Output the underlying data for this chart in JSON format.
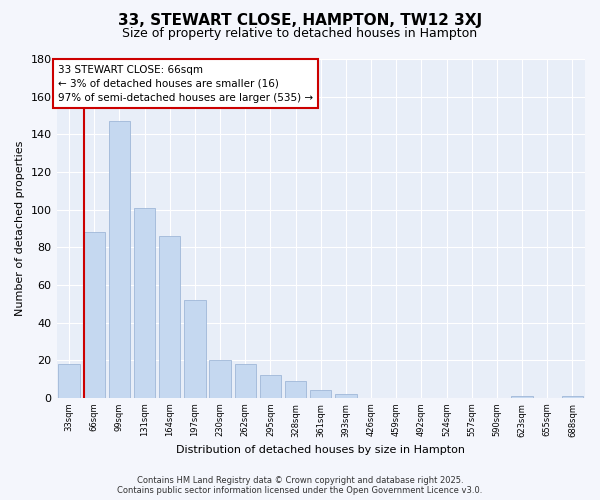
{
  "title": "33, STEWART CLOSE, HAMPTON, TW12 3XJ",
  "subtitle": "Size of property relative to detached houses in Hampton",
  "xlabel": "Distribution of detached houses by size in Hampton",
  "ylabel": "Number of detached properties",
  "bar_color": "#c5d8f0",
  "bar_edge_color": "#a0b8d8",
  "marker_color": "#cc0000",
  "background_color": "#f4f6fc",
  "plot_bg_color": "#e8eef8",
  "grid_color": "#ffffff",
  "bin_labels": [
    "33sqm",
    "66sqm",
    "99sqm",
    "131sqm",
    "164sqm",
    "197sqm",
    "230sqm",
    "262sqm",
    "295sqm",
    "328sqm",
    "361sqm",
    "393sqm",
    "426sqm",
    "459sqm",
    "492sqm",
    "524sqm",
    "557sqm",
    "590sqm",
    "623sqm",
    "655sqm",
    "688sqm"
  ],
  "bar_values": [
    18,
    88,
    147,
    101,
    86,
    52,
    20,
    18,
    12,
    9,
    4,
    2,
    0,
    0,
    0,
    0,
    0,
    0,
    1,
    0,
    1
  ],
  "marker_bin_index": 1,
  "annotation_title": "33 STEWART CLOSE: 66sqm",
  "annotation_line1": "← 3% of detached houses are smaller (16)",
  "annotation_line2": "97% of semi-detached houses are larger (535) →",
  "ylim": [
    0,
    180
  ],
  "yticks": [
    0,
    20,
    40,
    60,
    80,
    100,
    120,
    140,
    160,
    180
  ],
  "footer1": "Contains HM Land Registry data © Crown copyright and database right 2025.",
  "footer2": "Contains public sector information licensed under the Open Government Licence v3.0."
}
